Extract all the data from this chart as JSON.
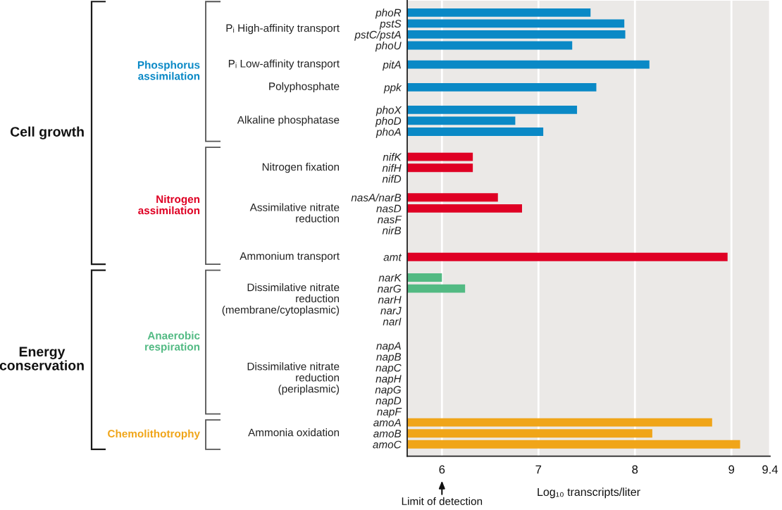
{
  "chart_data": {
    "type": "bar",
    "orientation": "horizontal",
    "xlabel": "Log₁₀ transcripts/liter",
    "categories": [
      "phoR",
      "pstS",
      "pstC/pstA",
      "phoU",
      "pitA",
      "ppk",
      "phoX",
      "phoD",
      "phoA",
      "nifK",
      "nifH",
      "nifD",
      "nasA/narB",
      "nasD",
      "nasF",
      "nirB",
      "amt",
      "narK",
      "narG",
      "narH",
      "narJ",
      "narI",
      "napA",
      "napB",
      "napC",
      "napH",
      "napG",
      "napD",
      "napF",
      "amoA",
      "amoB",
      "amoC"
    ],
    "series": [
      {
        "name": "Phosphorus\nassimilation",
        "color": "#0a89c6",
        "values": [
          7.54,
          7.89,
          7.9,
          7.35,
          8.15,
          7.6,
          7.4,
          6.76,
          7.05,
          null,
          null,
          null,
          null,
          null,
          null,
          null,
          null,
          null,
          null,
          null,
          null,
          null,
          null,
          null,
          null,
          null,
          null,
          null,
          null,
          null,
          null,
          null
        ]
      },
      {
        "name": "Nitrogen\nassimilation",
        "color": "#df0024",
        "values": [
          null,
          null,
          null,
          null,
          null,
          null,
          null,
          null,
          null,
          6.32,
          6.32,
          null,
          6.58,
          6.83,
          null,
          null,
          8.96,
          null,
          null,
          null,
          null,
          null,
          null,
          null,
          null,
          null,
          null,
          null,
          null,
          null,
          null,
          null
        ]
      },
      {
        "name": "Anaerobic\nrespiration",
        "color": "#52ba83",
        "values": [
          null,
          null,
          null,
          null,
          null,
          null,
          null,
          null,
          null,
          null,
          null,
          null,
          null,
          null,
          null,
          null,
          null,
          6.0,
          6.24,
          null,
          null,
          null,
          null,
          null,
          null,
          null,
          null,
          null,
          null,
          null,
          null,
          null
        ]
      },
      {
        "name": "Chemolithotrophy",
        "color": "#f0a519",
        "values": [
          null,
          null,
          null,
          null,
          null,
          null,
          null,
          null,
          null,
          null,
          null,
          null,
          null,
          null,
          null,
          null,
          null,
          null,
          null,
          null,
          null,
          null,
          null,
          null,
          null,
          null,
          null,
          null,
          null,
          8.8,
          8.18,
          9.09
        ]
      }
    ],
    "xlim": [
      5.64,
      9.4
    ],
    "xticks": [
      6,
      7,
      8,
      9,
      9.4
    ],
    "grid": "x",
    "annotations": [
      "Cell growth",
      "Energy\nconservation",
      "Pᵢ High-affinity transport",
      "Pᵢ Low-affinity transport",
      "Polyphosphate",
      "Alkaline phosphatase",
      "Nitrogen fixation",
      "Assimilative nitrate\nreduction",
      "Ammonium transport",
      "Dissimilative nitrate\nreduction\n(membrane/cytoplasmic)",
      "Dissimilative nitrate\nreduction\n(periplasmic)",
      "Ammonia oxidation",
      {
        "text": "Limit of detection",
        "x": 6
      }
    ]
  }
}
